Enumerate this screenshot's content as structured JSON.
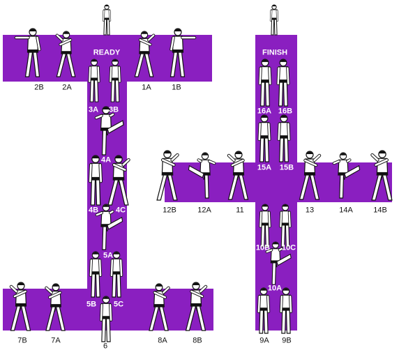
{
  "colors": {
    "path": "#8a1fc0",
    "figure_outline": "#111111",
    "figure_fill": "#ffffff",
    "belt": "#111111",
    "background": "#ffffff",
    "label_on_path": "#ffffff",
    "label_off_path": "#111111"
  },
  "labels": {
    "ready": "READY",
    "finish": "FINISH"
  },
  "steps": {
    "s1a": "1A",
    "s1b": "1B",
    "s2a": "2A",
    "s2b": "2B",
    "s3a": "3A",
    "s3b": "3B",
    "s4a": "4A",
    "s4b": "4B",
    "s4c": "4C",
    "s5a": "5A",
    "s5b": "5B",
    "s5c": "5C",
    "s6": "6",
    "s7a": "7A",
    "s7b": "7B",
    "s8a": "8A",
    "s8b": "8B",
    "s9a": "9A",
    "s9b": "9B",
    "s10a": "10A",
    "s10b": "10B",
    "s10c": "10C",
    "s11": "11",
    "s12a": "12A",
    "s12b": "12B",
    "s13": "13",
    "s14a": "14A",
    "s14b": "14B",
    "s15a": "15A",
    "s15b": "15B",
    "s16a": "16A",
    "s16b": "16B"
  }
}
